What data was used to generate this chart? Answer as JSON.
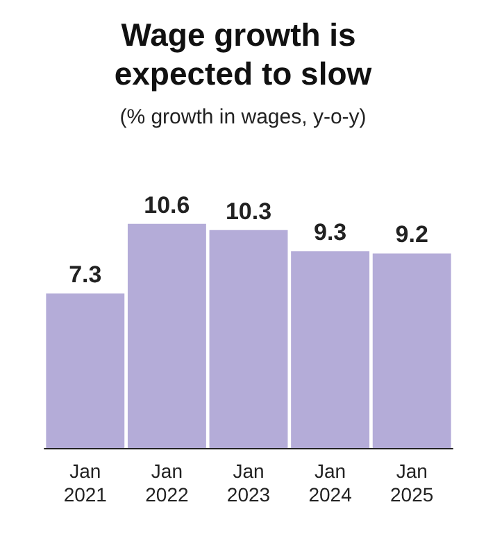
{
  "chart_data": {
    "type": "bar",
    "title": "Wage growth is expected to slow",
    "subtitle": "(% growth in wages, y-o-y)",
    "categories": [
      "Jan 2021",
      "Jan 2022",
      "Jan 2023",
      "Jan 2024",
      "Jan 2025"
    ],
    "values": [
      7.3,
      10.6,
      10.3,
      9.3,
      9.2
    ],
    "color": "#b4acd8",
    "data_labels": true
  }
}
